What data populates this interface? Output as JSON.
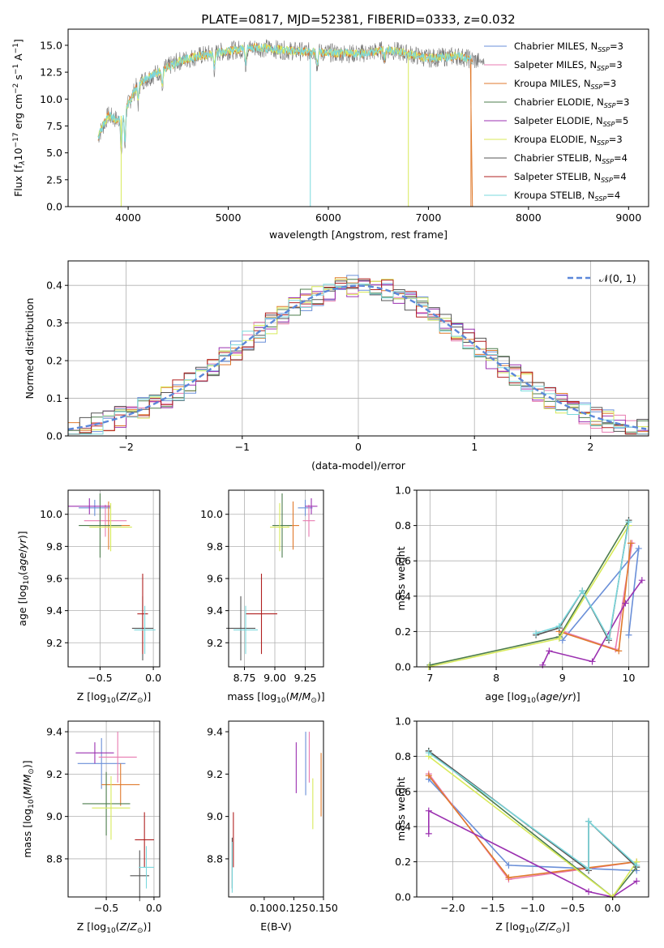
{
  "figure_title": "PLATE=0817, MJD=52381, FIBERID=0333, z=0.032",
  "legend_models": [
    {
      "label": "Chabrier MILES, N",
      "sub": "SSP",
      "tail": "=3",
      "color": "#6a8fd8"
    },
    {
      "label": "Salpeter MILES, N",
      "sub": "SSP",
      "tail": "=3",
      "color": "#e87bb0"
    },
    {
      "label": "Kroupa MILES, N",
      "sub": "SSP",
      "tail": "=3",
      "color": "#e07a2c"
    },
    {
      "label": "Chabrier ELODIE, N",
      "sub": "SSP",
      "tail": "=3",
      "color": "#4d7d4d"
    },
    {
      "label": "Salpeter ELODIE, N",
      "sub": "SSP",
      "tail": "=5",
      "color": "#9b30b0"
    },
    {
      "label": "Kroupa ELODIE, N",
      "sub": "SSP",
      "tail": "=3",
      "color": "#d8ea5a"
    },
    {
      "label": "Chabrier STELIB, N",
      "sub": "SSP",
      "tail": "=4",
      "color": "#555555"
    },
    {
      "label": "Salpeter STELIB, N",
      "sub": "SSP",
      "tail": "=4",
      "color": "#b02020"
    },
    {
      "label": "Kroupa STELIB, N",
      "sub": "SSP",
      "tail": "=4",
      "color": "#7ad8dd"
    }
  ],
  "chart_data": [
    {
      "type": "line",
      "id": "spectrum",
      "xlabel": "wavelength [Angstrom, rest frame]",
      "ylabel": "Flux [f_λ 10^-17 erg cm^-2 s^-1 A^-1]",
      "xlim": [
        3400,
        9200
      ],
      "ylim": [
        0,
        16.5
      ],
      "xticks": [
        4000,
        5000,
        6000,
        7000,
        8000,
        9000
      ],
      "yticks": [
        0.0,
        2.5,
        5.0,
        7.5,
        10.0,
        12.5,
        15.0
      ],
      "grid": false,
      "legend": "top-right",
      "data_x": [
        3700,
        3800,
        3900,
        4000,
        4100,
        4200,
        4300,
        4500,
        4700,
        5000,
        5300,
        5600,
        6000,
        6300,
        6600,
        7000,
        7300,
        7500
      ],
      "data_y": [
        6.5,
        8.5,
        8.0,
        9.5,
        11.5,
        12.0,
        12.5,
        13.5,
        14.0,
        14.5,
        14.8,
        14.5,
        14.3,
        14.2,
        14.6,
        13.8,
        14.0,
        13.5
      ]
    },
    {
      "type": "line",
      "id": "residual_hist",
      "xlabel": "(data-model)/error",
      "ylabel": "Normed distribution",
      "xlim": [
        -2.5,
        2.5
      ],
      "ylim": [
        0,
        0.465
      ],
      "xticks": [
        -2,
        -1,
        0,
        1,
        2
      ],
      "yticks": [
        0.0,
        0.1,
        0.2,
        0.3,
        0.4
      ],
      "grid": true,
      "legend": "top-right",
      "legend_label": "N(0,1)",
      "bin_width": 0.1
    },
    {
      "type": "scatter",
      "id": "age_vs_Z",
      "xlabel": "Z [log10(Z/Z⊙)]",
      "ylabel": "age [log10(age/yr)]",
      "xlim": [
        -0.8,
        0.06
      ],
      "ylim": [
        9.05,
        10.15
      ],
      "xticks": [
        -0.5,
        0.0
      ],
      "yticks": [
        9.2,
        9.4,
        9.6,
        9.8,
        10.0
      ],
      "grid": true,
      "points": [
        {
          "x": -0.55,
          "y": 10.04,
          "xerr": 0.15,
          "yerr": 0.05,
          "c": 0
        },
        {
          "x": -0.45,
          "y": 9.96,
          "xerr": 0.2,
          "yerr": 0.1,
          "c": 1
        },
        {
          "x": -0.42,
          "y": 9.93,
          "xerr": 0.2,
          "yerr": 0.15,
          "c": 2
        },
        {
          "x": -0.5,
          "y": 9.93,
          "xerr": 0.2,
          "yerr": 0.2,
          "c": 3
        },
        {
          "x": -0.6,
          "y": 10.05,
          "xerr": 0.2,
          "yerr": 0.05,
          "c": 4
        },
        {
          "x": -0.4,
          "y": 9.92,
          "xerr": 0.2,
          "yerr": 0.15,
          "c": 5
        },
        {
          "x": -0.1,
          "y": 9.29,
          "xerr": 0.1,
          "yerr": 0.2,
          "c": 6
        },
        {
          "x": -0.1,
          "y": 9.38,
          "xerr": 0.05,
          "yerr": 0.25,
          "c": 7
        },
        {
          "x": -0.08,
          "y": 9.28,
          "xerr": 0.1,
          "yerr": 0.15,
          "c": 8
        }
      ]
    },
    {
      "type": "scatter",
      "id": "age_vs_mass",
      "xlabel": "mass [log10(M/M⊙)]",
      "ylabel": "",
      "xlim": [
        8.62,
        9.4
      ],
      "ylim": [
        9.05,
        10.15
      ],
      "xticks": [
        8.75,
        9.0,
        9.25
      ],
      "yticks": [
        9.2,
        9.4,
        9.6,
        9.8,
        10.0
      ],
      "grid": true,
      "points": [
        {
          "x": 9.25,
          "y": 10.04,
          "xerr": 0.06,
          "yerr": 0.05,
          "c": 0
        },
        {
          "x": 9.28,
          "y": 9.96,
          "xerr": 0.05,
          "yerr": 0.1,
          "c": 1
        },
        {
          "x": 9.15,
          "y": 9.93,
          "xerr": 0.05,
          "yerr": 0.15,
          "c": 2
        },
        {
          "x": 9.06,
          "y": 9.93,
          "xerr": 0.08,
          "yerr": 0.2,
          "c": 3
        },
        {
          "x": 9.3,
          "y": 10.05,
          "xerr": 0.05,
          "yerr": 0.05,
          "c": 4
        },
        {
          "x": 9.04,
          "y": 9.92,
          "xerr": 0.08,
          "yerr": 0.15,
          "c": 5
        },
        {
          "x": 8.72,
          "y": 9.29,
          "xerr": 0.12,
          "yerr": 0.2,
          "c": 6
        },
        {
          "x": 8.89,
          "y": 9.38,
          "xerr": 0.13,
          "yerr": 0.25,
          "c": 7
        },
        {
          "x": 8.76,
          "y": 9.28,
          "xerr": 0.1,
          "yerr": 0.15,
          "c": 8
        }
      ]
    },
    {
      "type": "line",
      "id": "massweight_vs_age",
      "xlabel": "age [log10(age/yr)]",
      "ylabel": "mass weight",
      "xlim": [
        6.8,
        10.3
      ],
      "ylim": [
        0,
        1.0
      ],
      "xticks": [
        7,
        8,
        9,
        10
      ],
      "yticks": [
        0.0,
        0.2,
        0.4,
        0.6,
        0.8,
        1.0
      ],
      "grid": true,
      "series": [
        {
          "c": 0,
          "x": [
            9.0,
            10.15,
            10.0
          ],
          "y": [
            0.15,
            0.67,
            0.18
          ]
        },
        {
          "c": 1,
          "x": [
            9.0,
            9.8,
            10.05
          ],
          "y": [
            0.2,
            0.1,
            0.7
          ]
        },
        {
          "c": 2,
          "x": [
            8.95,
            9.85,
            10.03
          ],
          "y": [
            0.2,
            0.09,
            0.7
          ]
        },
        {
          "c": 3,
          "x": [
            7.0,
            8.95,
            10.0
          ],
          "y": [
            0.01,
            0.17,
            0.83
          ]
        },
        {
          "c": 4,
          "x": [
            8.7,
            8.8,
            9.45,
            9.95,
            10.2
          ],
          "y": [
            0.01,
            0.09,
            0.03,
            0.36,
            0.49
          ]
        },
        {
          "c": 5,
          "x": [
            6.98,
            8.95,
            10.0
          ],
          "y": [
            0.0,
            0.16,
            0.8
          ]
        },
        {
          "c": 6,
          "x": [
            8.6,
            8.95,
            9.3,
            9.7,
            10.0
          ],
          "y": [
            0.18,
            0.22,
            0.43,
            0.15,
            0.83
          ]
        },
        {
          "c": 8,
          "x": [
            8.6,
            8.95,
            9.3,
            9.7,
            10.0
          ],
          "y": [
            0.19,
            0.23,
            0.43,
            0.16,
            0.82
          ]
        }
      ]
    },
    {
      "type": "scatter",
      "id": "mass_vs_Z",
      "xlabel": "Z [log10(Z/Z⊙)]",
      "ylabel": "mass [log10(M/M⊙)]",
      "xlim": [
        -0.9,
        0.06
      ],
      "ylim": [
        8.62,
        9.45
      ],
      "xticks": [
        -0.5,
        0.0
      ],
      "yticks": [
        8.8,
        9.0,
        9.2,
        9.4
      ],
      "grid": true,
      "points": [
        {
          "x": -0.55,
          "y": 9.25,
          "xerr": 0.25,
          "yerr": 0.12,
          "c": 0
        },
        {
          "x": -0.38,
          "y": 9.28,
          "xerr": 0.2,
          "yerr": 0.12,
          "c": 1
        },
        {
          "x": -0.35,
          "y": 9.15,
          "xerr": 0.2,
          "yerr": 0.1,
          "c": 2
        },
        {
          "x": -0.5,
          "y": 9.06,
          "xerr": 0.25,
          "yerr": 0.15,
          "c": 3
        },
        {
          "x": -0.62,
          "y": 9.3,
          "xerr": 0.2,
          "yerr": 0.05,
          "c": 4
        },
        {
          "x": -0.45,
          "y": 9.04,
          "xerr": 0.2,
          "yerr": 0.15,
          "c": 5
        },
        {
          "x": -0.15,
          "y": 8.72,
          "xerr": 0.1,
          "yerr": 0.12,
          "c": 6
        },
        {
          "x": -0.1,
          "y": 8.89,
          "xerr": 0.1,
          "yerr": 0.13,
          "c": 7
        },
        {
          "x": -0.08,
          "y": 8.76,
          "xerr": 0.08,
          "yerr": 0.1,
          "c": 8
        }
      ]
    },
    {
      "type": "scatter",
      "id": "mass_vs_ebv",
      "xlabel": "E(B-V)",
      "ylabel": "",
      "xlim": [
        0.07,
        0.15
      ],
      "ylim": [
        8.62,
        9.45
      ],
      "xticks": [
        0.1,
        0.125,
        0.15
      ],
      "xtick_labels": [
        "0.100",
        "0.125",
        "0.150"
      ],
      "yticks": [
        8.8,
        9.0,
        9.2,
        9.4
      ],
      "grid": false,
      "points": [
        {
          "x": 0.135,
          "y": 9.25,
          "yerr": 0.15,
          "c": 0
        },
        {
          "x": 0.138,
          "y": 9.28,
          "yerr": 0.12,
          "c": 1
        },
        {
          "x": 0.148,
          "y": 9.15,
          "yerr": 0.15,
          "c": 2
        },
        {
          "x": 0.127,
          "y": 9.23,
          "yerr": 0.12,
          "c": 4
        },
        {
          "x": 0.141,
          "y": 9.06,
          "yerr": 0.12,
          "c": 5
        },
        {
          "x": 0.073,
          "y": 8.78,
          "yerr": 0.12,
          "c": 6
        },
        {
          "x": 0.074,
          "y": 8.89,
          "yerr": 0.13,
          "c": 7
        },
        {
          "x": 0.073,
          "y": 8.76,
          "yerr": 0.12,
          "c": 8
        }
      ]
    },
    {
      "type": "line",
      "id": "massweight_vs_Z",
      "xlabel": "Z [log10(Z/Z⊙)]",
      "ylabel": "mass weight",
      "xlim": [
        -2.45,
        0.45
      ],
      "ylim": [
        0,
        1.0
      ],
      "xticks": [
        -2.0,
        -1.5,
        -1.0,
        -0.5,
        0.0
      ],
      "yticks": [
        0.0,
        0.2,
        0.4,
        0.6,
        0.8,
        1.0
      ],
      "grid": true,
      "series": [
        {
          "c": 0,
          "x": [
            -2.3,
            -1.3,
            0.3
          ],
          "y": [
            0.67,
            0.18,
            0.15
          ]
        },
        {
          "c": 1,
          "x": [
            -2.3,
            -1.3,
            0.3
          ],
          "y": [
            0.7,
            0.1,
            0.2
          ]
        },
        {
          "c": 2,
          "x": [
            -2.3,
            -1.3,
            0.3
          ],
          "y": [
            0.69,
            0.11,
            0.2
          ]
        },
        {
          "c": 3,
          "x": [
            -2.3,
            0.0,
            0.3
          ],
          "y": [
            0.83,
            0.0,
            0.17
          ]
        },
        {
          "c": 4,
          "x": [
            -2.3,
            -2.3,
            -0.3,
            0.0,
            0.3
          ],
          "y": [
            0.36,
            0.49,
            0.03,
            0.0,
            0.09
          ]
        },
        {
          "c": 5,
          "x": [
            -2.3,
            0.0,
            0.3
          ],
          "y": [
            0.8,
            0.0,
            0.2
          ]
        },
        {
          "c": 6,
          "x": [
            -2.3,
            -0.3,
            -0.3,
            0.3
          ],
          "y": [
            0.83,
            0.15,
            0.43,
            0.17
          ]
        },
        {
          "c": 8,
          "x": [
            -2.3,
            -0.3,
            -0.3,
            0.3
          ],
          "y": [
            0.82,
            0.16,
            0.43,
            0.18
          ]
        }
      ]
    }
  ]
}
